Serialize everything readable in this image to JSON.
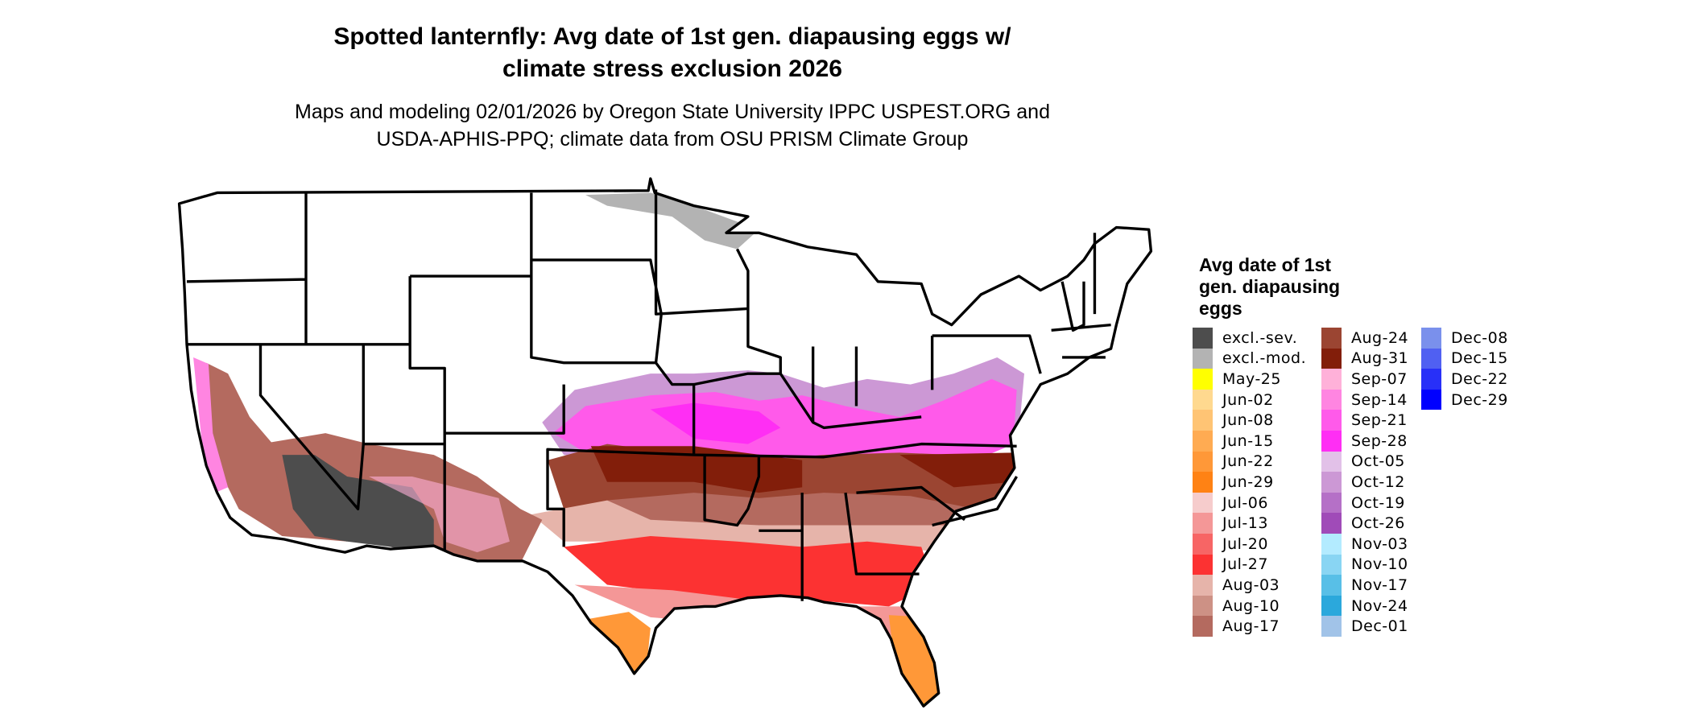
{
  "title_line1": "Spotted lanternfly: Avg date of 1st gen. diapausing eggs w/",
  "title_line2": "climate stress exclusion 2026",
  "subtitle_line1": "Maps and modeling 02/01/2026 by Oregon State University IPPC USPEST.ORG and",
  "subtitle_line2": "USDA-APHIS-PPQ; climate data from OSU PRISM Climate Group",
  "map": {
    "region": "Contiguous United States",
    "background_color": "#ffffff",
    "boundary_color": "#000000"
  },
  "legend": {
    "title_line1": "Avg date of 1st",
    "title_line2": "gen. diapausing",
    "title_line3": "eggs",
    "columns": [
      [
        {
          "label": "excl.-sev.",
          "color": "#4d4d4d"
        },
        {
          "label": "excl.-mod.",
          "color": "#b3b3b3"
        },
        {
          "label": "May-25",
          "color": "#ffff00"
        },
        {
          "label": "Jun-02",
          "color": "#ffd98f"
        },
        {
          "label": "Jun-08",
          "color": "#ffc474"
        },
        {
          "label": "Jun-15",
          "color": "#ffab52"
        },
        {
          "label": "Jun-22",
          "color": "#ff9838"
        },
        {
          "label": "Jun-29",
          "color": "#ff8214"
        },
        {
          "label": "Jul-06",
          "color": "#f6cccc"
        },
        {
          "label": "Jul-13",
          "color": "#f49797"
        },
        {
          "label": "Jul-20",
          "color": "#f76565"
        },
        {
          "label": "Jul-27",
          "color": "#fc3232"
        },
        {
          "label": "Aug-03",
          "color": "#e6b4aa"
        },
        {
          "label": "Aug-10",
          "color": "#cd9185"
        },
        {
          "label": "Aug-17",
          "color": "#b46a5f"
        }
      ],
      [
        {
          "label": "Aug-24",
          "color": "#9b4532"
        },
        {
          "label": "Aug-31",
          "color": "#821e0a"
        },
        {
          "label": "Sep-07",
          "color": "#ffb1d9"
        },
        {
          "label": "Sep-14",
          "color": "#ff85e1"
        },
        {
          "label": "Sep-21",
          "color": "#ff5aea"
        },
        {
          "label": "Sep-28",
          "color": "#ff2ef4"
        },
        {
          "label": "Oct-05",
          "color": "#e2c1e8"
        },
        {
          "label": "Oct-12",
          "color": "#cc98d5"
        },
        {
          "label": "Oct-19",
          "color": "#b570c7"
        },
        {
          "label": "Oct-26",
          "color": "#a04bb8"
        },
        {
          "label": "Nov-03",
          "color": "#b3ebff"
        },
        {
          "label": "Nov-10",
          "color": "#89d5f3"
        },
        {
          "label": "Nov-17",
          "color": "#58bfe7"
        },
        {
          "label": "Nov-24",
          "color": "#2ba8dc"
        },
        {
          "label": "Dec-01",
          "color": "#a1c3e8"
        }
      ],
      [
        {
          "label": "Dec-08",
          "color": "#7a90ec"
        },
        {
          "label": "Dec-15",
          "color": "#5060f2"
        },
        {
          "label": "Dec-22",
          "color": "#2830f8"
        },
        {
          "label": "Dec-29",
          "color": "#0000ff"
        }
      ]
    ]
  }
}
